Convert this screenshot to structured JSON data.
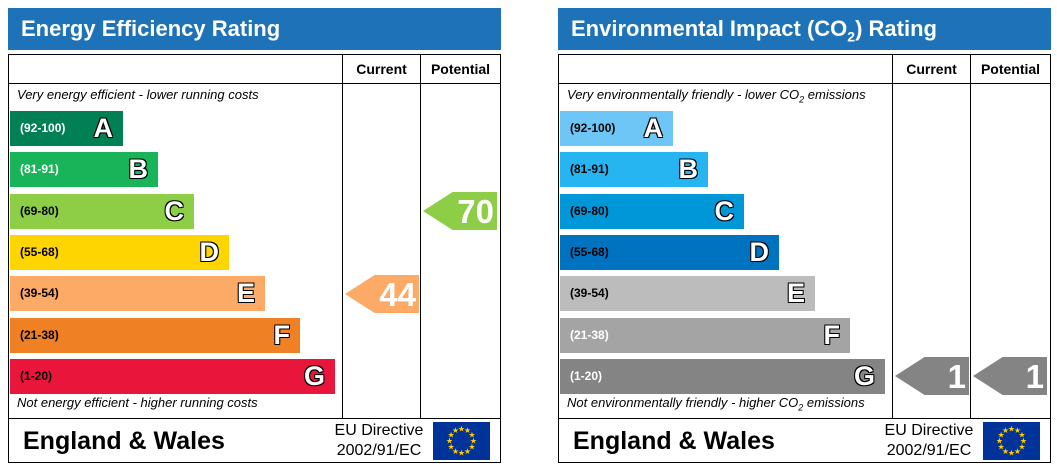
{
  "colors": {
    "title_bar": "#1d72b8",
    "eu_flag": "#003399",
    "eu_star": "#ffcc00"
  },
  "chart_data": [
    {
      "type": "bar",
      "title": "Energy Efficiency Rating",
      "top_note": "Very energy efficient - lower running costs",
      "bottom_note": "Not energy efficient - higher running costs",
      "columns": [
        "Current",
        "Potential"
      ],
      "bands": [
        {
          "range": "(92-100)",
          "letter": "A",
          "fill": "#008054",
          "range_color": "#ffffff"
        },
        {
          "range": "(81-91)",
          "letter": "B",
          "fill": "#19b459",
          "range_color": "#ffffff"
        },
        {
          "range": "(69-80)",
          "letter": "C",
          "fill": "#8dce46",
          "range_color": "#000000"
        },
        {
          "range": "(55-68)",
          "letter": "D",
          "fill": "#ffd500",
          "range_color": "#000000"
        },
        {
          "range": "(39-54)",
          "letter": "E",
          "fill": "#fcaa65",
          "range_color": "#000000"
        },
        {
          "range": "(21-38)",
          "letter": "F",
          "fill": "#ef8023",
          "range_color": "#000000"
        },
        {
          "range": "(1-20)",
          "letter": "G",
          "fill": "#e9153b",
          "range_color": "#000000"
        }
      ],
      "ratings": [
        {
          "column": "Current",
          "value": 44,
          "band": "E",
          "fill": "#fcaa65"
        },
        {
          "column": "Potential",
          "value": 70,
          "band": "C",
          "fill": "#8dce46"
        }
      ],
      "region": "England & Wales",
      "directive_lines": [
        "EU Directive",
        "2002/91/EC"
      ]
    },
    {
      "type": "bar",
      "title_before": "Environmental Impact (CO",
      "title_sub": "2",
      "title_after": ") Rating",
      "top_note_before": "Very environmentally friendly - lower CO",
      "top_note_sub": "2",
      "top_note_after": " emissions",
      "bottom_note_before": "Not environmentally friendly - higher CO",
      "bottom_note_sub": "2",
      "bottom_note_after": " emissions",
      "columns": [
        "Current",
        "Potential"
      ],
      "bands": [
        {
          "range": "(92-100)",
          "letter": "A",
          "fill": "#6dc6f5",
          "range_color": "#000000"
        },
        {
          "range": "(81-91)",
          "letter": "B",
          "fill": "#27b5f2",
          "range_color": "#000000"
        },
        {
          "range": "(69-80)",
          "letter": "C",
          "fill": "#0097d8",
          "range_color": "#000000"
        },
        {
          "range": "(55-68)",
          "letter": "D",
          "fill": "#0073c0",
          "range_color": "#000000"
        },
        {
          "range": "(39-54)",
          "letter": "E",
          "fill": "#bcbcbc",
          "range_color": "#000000"
        },
        {
          "range": "(21-38)",
          "letter": "F",
          "fill": "#a4a4a4",
          "range_color": "#ffffff"
        },
        {
          "range": "(1-20)",
          "letter": "G",
          "fill": "#848484",
          "range_color": "#ffffff"
        }
      ],
      "ratings": [
        {
          "column": "Current",
          "value": 1,
          "band": "G",
          "fill": "#848484"
        },
        {
          "column": "Potential",
          "value": 1,
          "band": "G",
          "fill": "#848484"
        }
      ],
      "region": "England & Wales",
      "directive_lines": [
        "EU Directive",
        "2002/91/EC"
      ]
    }
  ]
}
